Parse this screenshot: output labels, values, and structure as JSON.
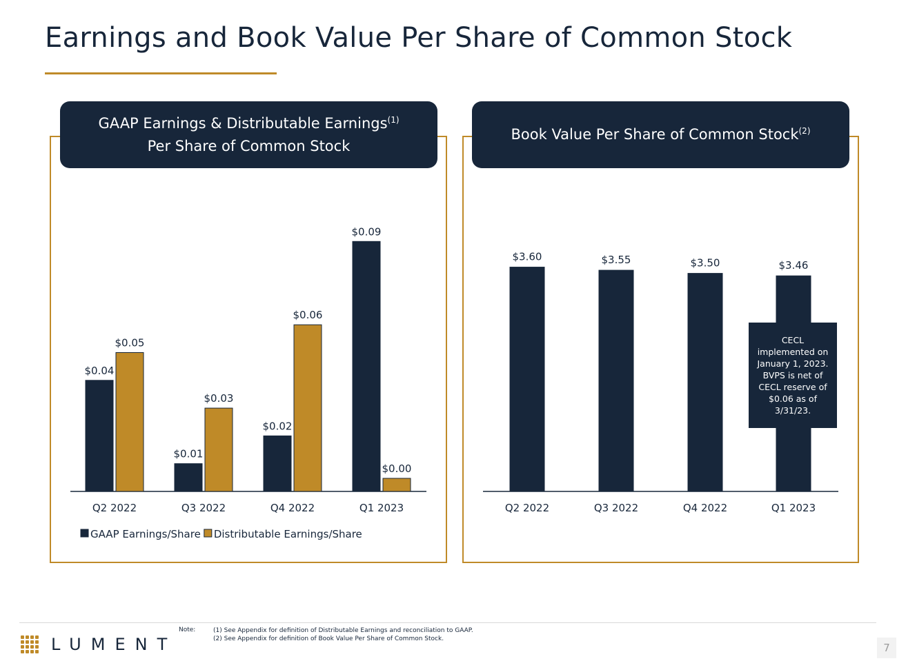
{
  "page": {
    "title": "Earnings and Book Value Per Share of Common Stock",
    "page_number": "7"
  },
  "left_panel": {
    "header_line1": "GAAP Earnings & Distributable Earnings",
    "header_line1_sup": "(1)",
    "header_line2": "Per Share of Common Stock"
  },
  "right_panel": {
    "header": "Book Value Per Share of Common Stock",
    "header_sup": "(2)",
    "note": "CECL implemented on January 1, 2023. BVPS is net of CECL reserve of $0.06 as of 3/31/23."
  },
  "colors": {
    "navy": "#17263a",
    "gold": "#bf8a28"
  },
  "chart_data": [
    {
      "type": "bar",
      "categories": [
        "Q2 2022",
        "Q3 2022",
        "Q4 2022",
        "Q1 2023"
      ],
      "series": [
        {
          "name": "GAAP Earnings/Share",
          "values": [
            0.04,
            0.01,
            0.02,
            0.09
          ],
          "labels": [
            "$0.04",
            "$0.01",
            "$0.02",
            "$0.09"
          ],
          "color": "#17263a"
        },
        {
          "name": "Distributable Earnings/Share",
          "values": [
            0.05,
            0.03,
            0.06,
            0.0
          ],
          "labels": [
            "$0.05",
            "$0.03",
            "$0.06",
            "$0.00"
          ],
          "color": "#bf8a28"
        }
      ],
      "legend": "bottom",
      "grid": false
    },
    {
      "type": "bar",
      "categories": [
        "Q2 2022",
        "Q3 2022",
        "Q4 2022",
        "Q1 2023"
      ],
      "series": [
        {
          "values": [
            3.6,
            3.55,
            3.5,
            3.46
          ],
          "labels": [
            "$3.60",
            "$3.55",
            "$3.50",
            "$3.46"
          ],
          "color": "#17263a"
        }
      ],
      "legend": "none",
      "grid": false
    }
  ],
  "footer": {
    "logo_text": "LUMENT",
    "note_label": "Note:",
    "note_1": "(1) See Appendix for definition of Distributable Earnings and reconciliation to GAAP.",
    "note_2": "(2) See Appendix for definition of Book Value Per Share of Common Stock."
  }
}
